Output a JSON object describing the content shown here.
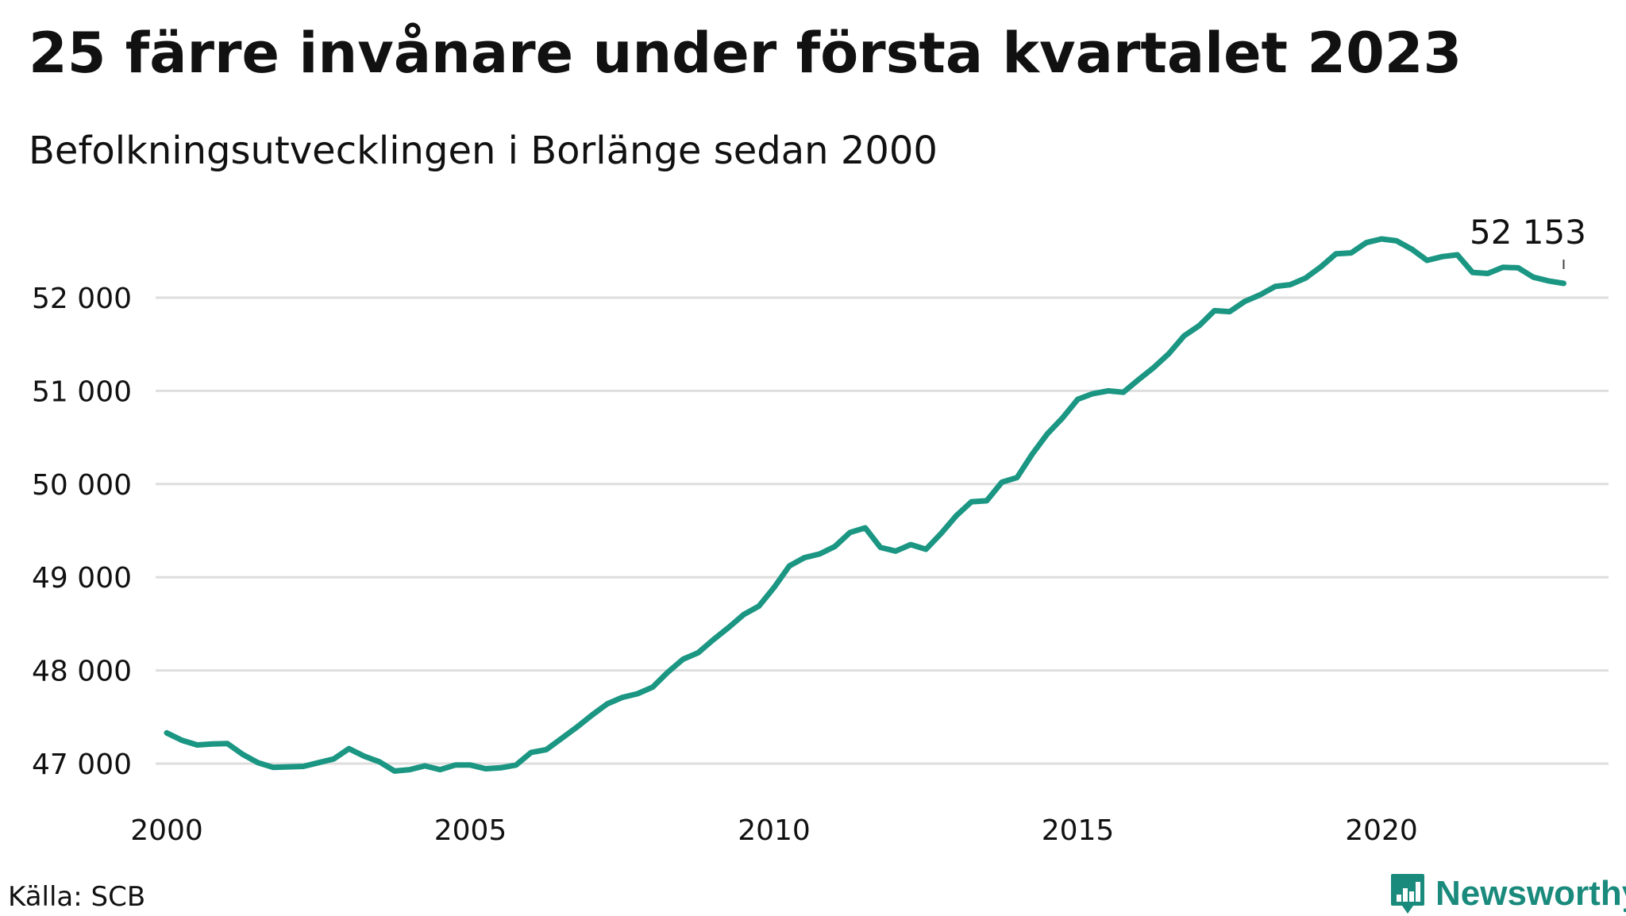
{
  "title": "25 färre invånare under första kvartalet 2023",
  "subtitle": "Befolkningsutvecklingen i Borlänge sedan 2000",
  "source": "Källa: SCB",
  "brand": {
    "name": "Newsworthy",
    "icon": "bar-chart-speech-bubble-icon",
    "color": "#1a8a7d"
  },
  "chart_data": {
    "type": "line",
    "title": "25 färre invånare under första kvartalet 2023",
    "subtitle": "Befolkningsutvecklingen i Borlänge sedan 2000",
    "xlabel": "",
    "ylabel": "",
    "xlim": [
      2000,
      2023.9
    ],
    "ylim": [
      46900,
      52700
    ],
    "x_ticks": [
      2000,
      2005,
      2010,
      2015,
      2020
    ],
    "x_tick_labels": [
      "2000",
      "2005",
      "2010",
      "2015",
      "2020"
    ],
    "y_ticks": [
      47000,
      48000,
      49000,
      50000,
      51000,
      52000
    ],
    "y_tick_labels": [
      "47 000",
      "48 000",
      "49 000",
      "50 000",
      "51 000",
      "52 000"
    ],
    "grid": "horizontal",
    "legend": "none",
    "line_color": "#1a9683",
    "end_label": "52 153",
    "series": [
      {
        "x": [
          2000.0,
          2000.25,
          2000.5,
          2000.75,
          2001.0,
          2001.25,
          2001.5,
          2001.75,
          2002.0,
          2002.25,
          2002.5,
          2002.75,
          2003.0,
          2003.25,
          2003.5,
          2003.75,
          2004.0,
          2004.25,
          2004.5,
          2004.75,
          2005.0,
          2005.25,
          2005.5,
          2005.75,
          2006.0,
          2006.25,
          2006.5,
          2006.75,
          2007.0,
          2007.25,
          2007.5,
          2007.75,
          2008.0,
          2008.25,
          2008.5,
          2008.75,
          2009.0,
          2009.25,
          2009.5,
          2009.75,
          2010.0,
          2010.25,
          2010.5,
          2010.75,
          2011.0,
          2011.25,
          2011.5,
          2011.75,
          2012.0,
          2012.25,
          2012.5,
          2012.75,
          2013.0,
          2013.25,
          2013.5,
          2013.75,
          2014.0,
          2014.25,
          2014.5,
          2014.75,
          2015.0,
          2015.25,
          2015.5,
          2015.75,
          2016.0,
          2016.25,
          2016.5,
          2016.75,
          2017.0,
          2017.25,
          2017.5,
          2017.75,
          2018.0,
          2018.25,
          2018.5,
          2018.75,
          2019.0,
          2019.25,
          2019.5,
          2019.75,
          2020.0,
          2020.25,
          2020.5,
          2020.75,
          2021.0,
          2021.25,
          2021.5,
          2021.75,
          2022.0,
          2022.25,
          2022.5,
          2022.75,
          2023.0
        ],
        "values": [
          47330,
          47250,
          47200,
          47210,
          47215,
          47100,
          47010,
          46960,
          46965,
          46970,
          47010,
          47050,
          47160,
          47080,
          47020,
          46920,
          46935,
          46975,
          46935,
          46985,
          46985,
          46945,
          46955,
          46985,
          47120,
          47150,
          47270,
          47390,
          47520,
          47640,
          47710,
          47750,
          47820,
          47980,
          48120,
          48190,
          48330,
          48460,
          48600,
          48690,
          48890,
          49120,
          49210,
          49250,
          49330,
          49480,
          49530,
          49320,
          49280,
          49350,
          49300,
          49470,
          49660,
          49810,
          49820,
          50020,
          50070,
          50320,
          50540,
          50710,
          50910,
          50970,
          51000,
          50985,
          51120,
          51250,
          51400,
          51590,
          51700,
          51860,
          51850,
          51960,
          52030,
          52120,
          52140,
          52210,
          52330,
          52470,
          52480,
          52590,
          52630,
          52610,
          52520,
          52400,
          52440,
          52460,
          52270,
          52260,
          52325,
          52320,
          52220,
          52180,
          52153
        ]
      }
    ]
  }
}
